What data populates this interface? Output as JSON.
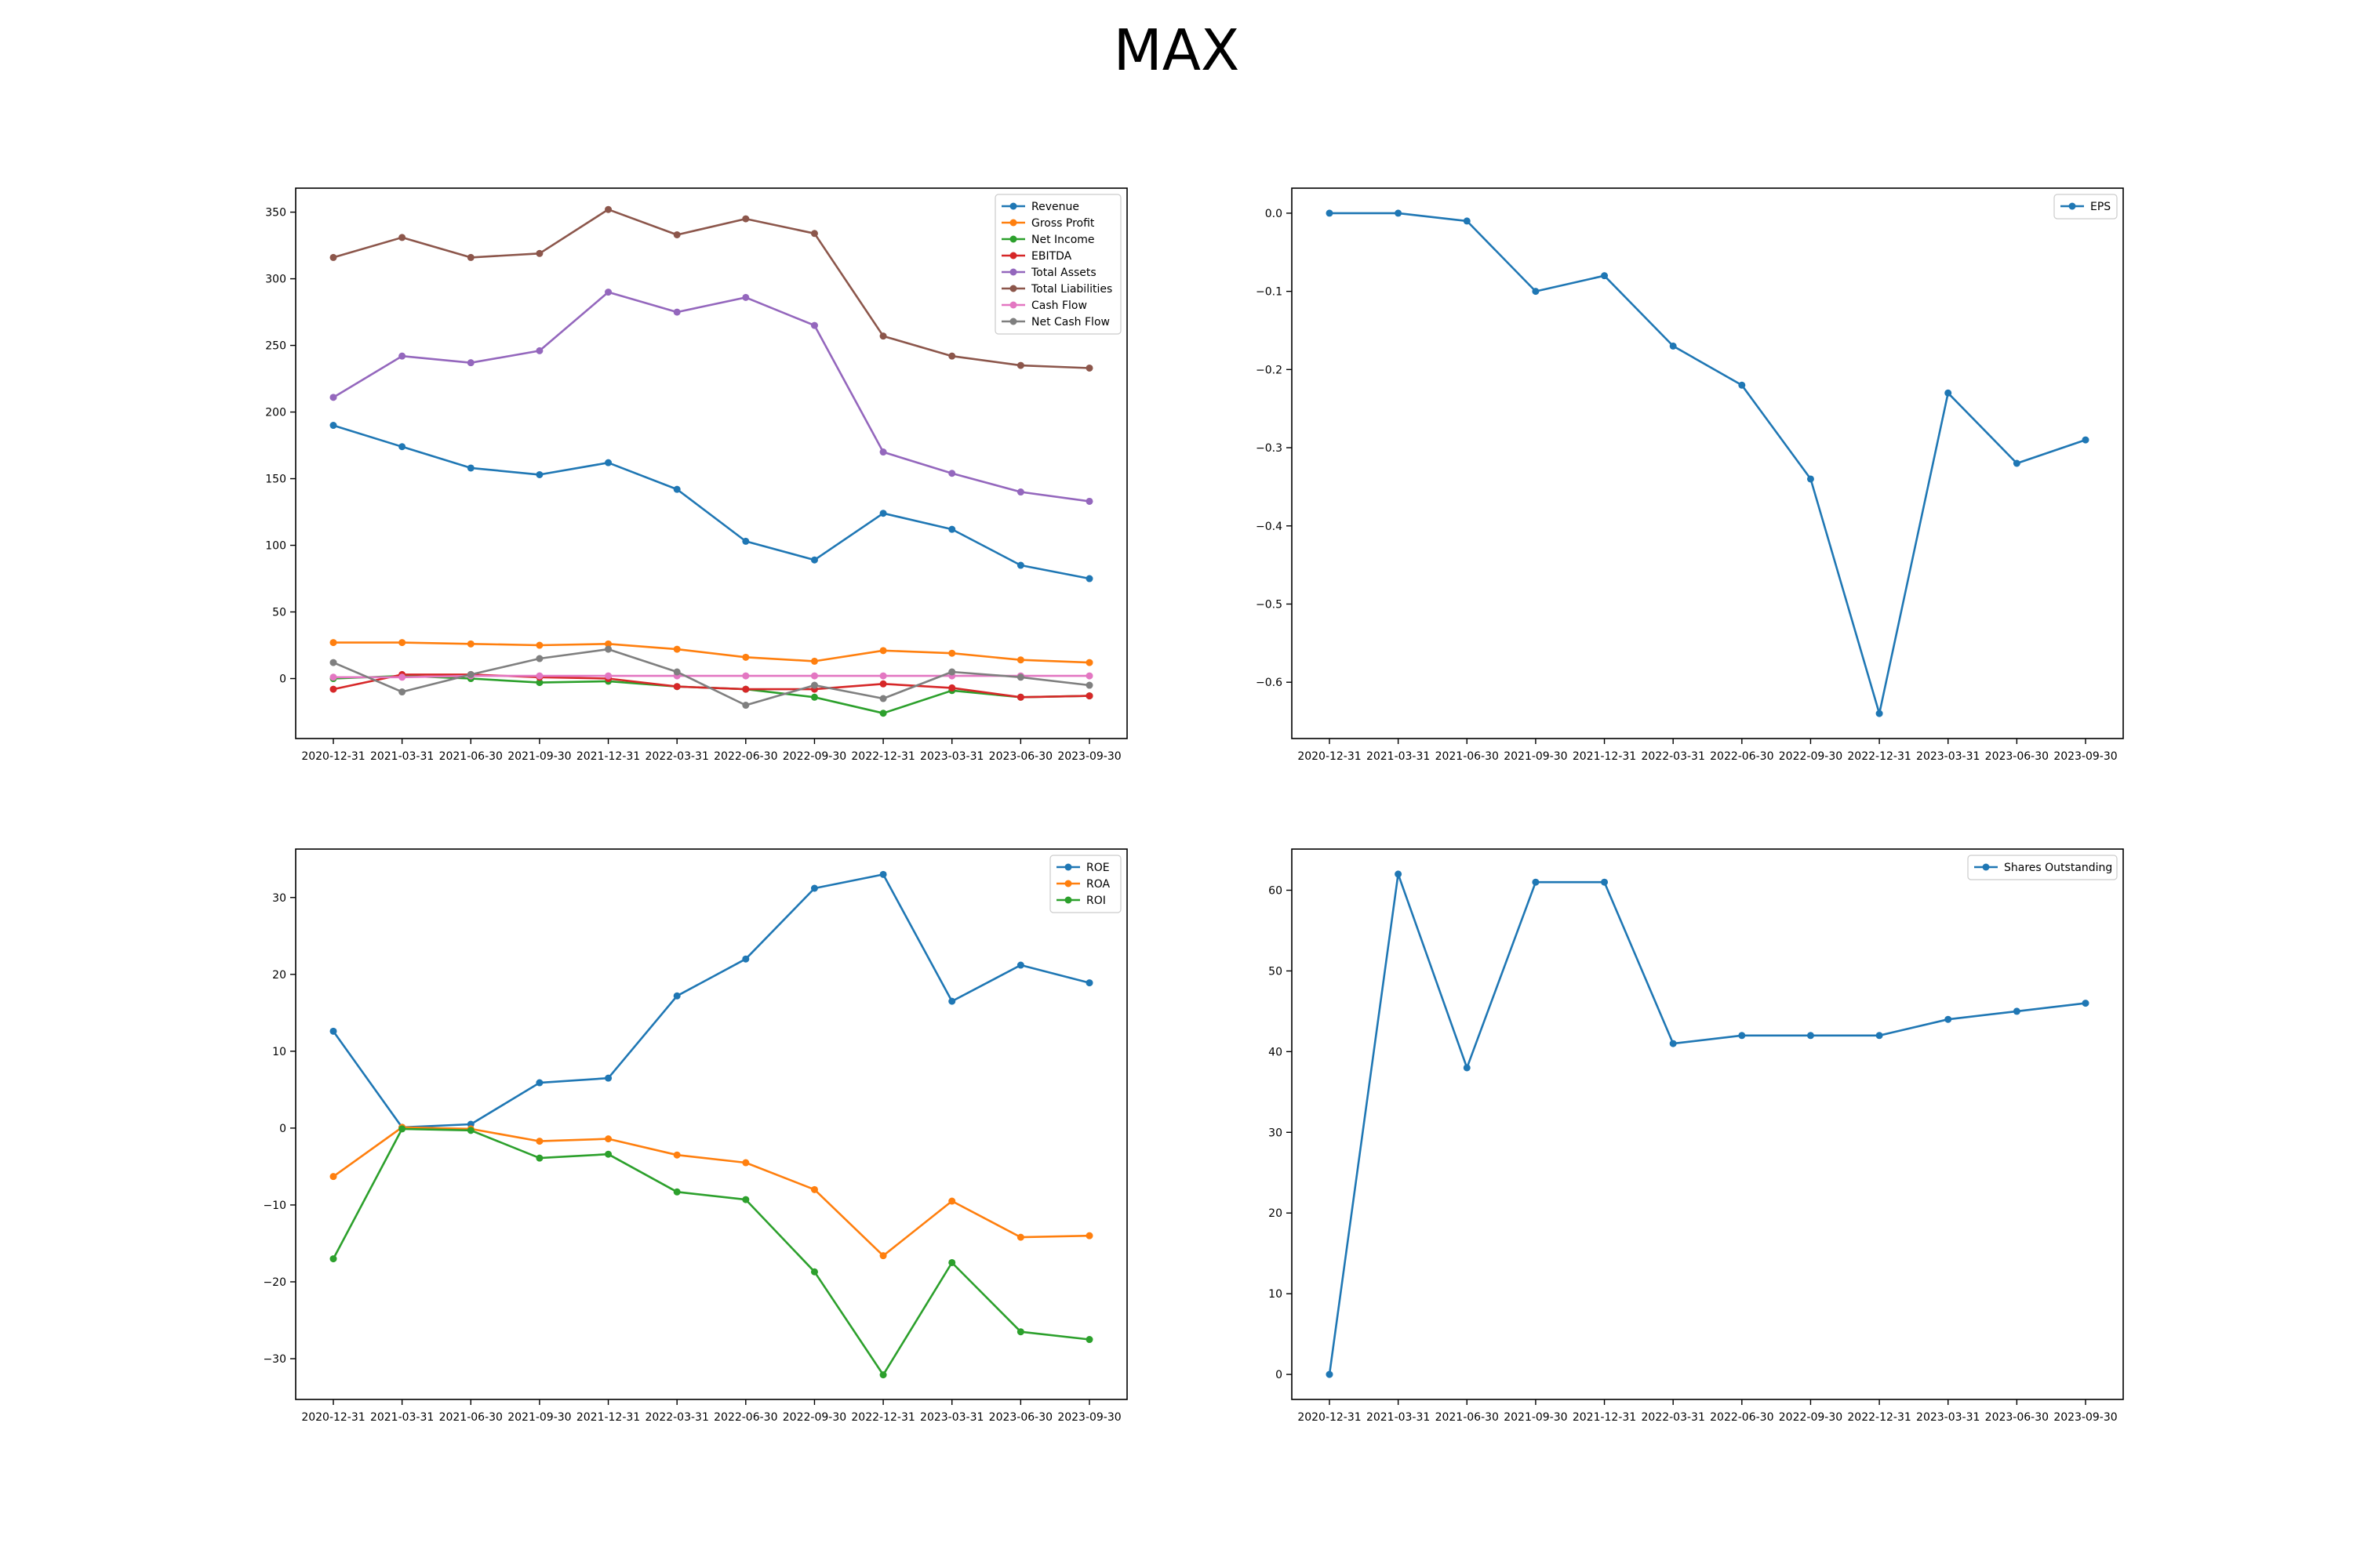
{
  "title": "MAX",
  "colors": {
    "blue": "#1f77b4",
    "orange": "#ff7f0e",
    "green": "#2ca02c",
    "red": "#d62728",
    "purple": "#9467bd",
    "brown": "#8c564b",
    "pink": "#e377c2",
    "gray": "#7f7f7f"
  },
  "chart_data": [
    {
      "id": "financials",
      "type": "line",
      "title": "",
      "xlabel": "",
      "ylabel": "",
      "categories": [
        "2020-12-31",
        "2021-03-31",
        "2021-06-30",
        "2021-09-30",
        "2021-12-31",
        "2022-03-31",
        "2022-06-30",
        "2022-09-30",
        "2022-12-31",
        "2023-03-31",
        "2023-06-30",
        "2023-09-30"
      ],
      "ylim": [
        -45,
        368
      ],
      "yticks": [
        0,
        50,
        100,
        150,
        200,
        250,
        300,
        350
      ],
      "legend": "top-right",
      "series": [
        {
          "name": "Revenue",
          "color": "#1f77b4",
          "values": [
            190,
            174,
            158,
            153,
            162,
            142,
            103,
            89,
            124,
            112,
            85,
            75
          ]
        },
        {
          "name": "Gross Profit",
          "color": "#ff7f0e",
          "values": [
            27,
            27,
            26,
            25,
            26,
            22,
            16,
            13,
            21,
            19,
            14,
            12
          ]
        },
        {
          "name": "Net Income",
          "color": "#2ca02c",
          "values": [
            0,
            2,
            0,
            -3,
            -2,
            -6,
            -8,
            -14,
            -26,
            -9,
            -14,
            -13
          ]
        },
        {
          "name": "EBITDA",
          "color": "#d62728",
          "values": [
            -8,
            3,
            3,
            1,
            0,
            -6,
            -8,
            -8,
            -4,
            -7,
            -14,
            -13
          ]
        },
        {
          "name": "Total Assets",
          "color": "#9467bd",
          "values": [
            211,
            242,
            237,
            246,
            290,
            275,
            286,
            265,
            170,
            154,
            140,
            133
          ]
        },
        {
          "name": "Total Liabilities",
          "color": "#8c564b",
          "values": [
            316,
            331,
            316,
            319,
            352,
            333,
            345,
            334,
            257,
            242,
            235,
            233
          ]
        },
        {
          "name": "Cash Flow",
          "color": "#e377c2",
          "values": [
            1,
            1,
            2,
            2,
            2,
            2,
            2,
            2,
            2,
            2,
            2,
            2
          ]
        },
        {
          "name": "Net Cash Flow",
          "color": "#7f7f7f",
          "values": [
            12,
            -10,
            3,
            15,
            22,
            5,
            -20,
            -5,
            -15,
            5,
            1,
            -5
          ]
        }
      ]
    },
    {
      "id": "eps",
      "type": "line",
      "title": "",
      "xlabel": "",
      "ylabel": "",
      "categories": [
        "2020-12-31",
        "2021-03-31",
        "2021-06-30",
        "2021-09-30",
        "2021-12-31",
        "2022-03-31",
        "2022-06-30",
        "2022-09-30",
        "2022-12-31",
        "2023-03-31",
        "2023-06-30",
        "2023-09-30"
      ],
      "ylim": [
        -0.672,
        0.032
      ],
      "yticks": [
        0.0,
        -0.1,
        -0.2,
        -0.3,
        -0.4,
        -0.5,
        -0.6
      ],
      "legend": "top-right",
      "series": [
        {
          "name": "EPS",
          "color": "#1f77b4",
          "values": [
            0.0,
            0.0,
            -0.01,
            -0.1,
            -0.08,
            -0.17,
            -0.22,
            -0.34,
            -0.64,
            -0.23,
            -0.32,
            -0.29
          ]
        }
      ]
    },
    {
      "id": "ratios",
      "type": "line",
      "title": "",
      "xlabel": "",
      "ylabel": "",
      "categories": [
        "2020-12-31",
        "2021-03-31",
        "2021-06-30",
        "2021-09-30",
        "2021-12-31",
        "2022-03-31",
        "2022-06-30",
        "2022-09-30",
        "2022-12-31",
        "2023-03-31",
        "2023-06-30",
        "2023-09-30"
      ],
      "ylim": [
        -35.3,
        36.3
      ],
      "yticks": [
        30,
        20,
        10,
        0,
        -10,
        -20,
        -30
      ],
      "legend": "top-right",
      "series": [
        {
          "name": "ROE",
          "color": "#1f77b4",
          "values": [
            12.6,
            0.1,
            0.5,
            5.9,
            6.5,
            17.2,
            22.0,
            31.2,
            33.0,
            16.5,
            21.2,
            18.9
          ]
        },
        {
          "name": "ROA",
          "color": "#ff7f0e",
          "values": [
            -6.3,
            0.1,
            -0.1,
            -1.7,
            -1.4,
            -3.5,
            -4.5,
            -8.0,
            -16.6,
            -9.5,
            -14.2,
            -14.0
          ]
        },
        {
          "name": "ROI",
          "color": "#2ca02c",
          "values": [
            -17.0,
            -0.1,
            -0.3,
            -3.9,
            -3.4,
            -8.3,
            -9.3,
            -18.7,
            -32.1,
            -17.5,
            -26.5,
            -27.5
          ]
        }
      ]
    },
    {
      "id": "shares",
      "type": "line",
      "title": "",
      "xlabel": "",
      "ylabel": "",
      "categories": [
        "2020-12-31",
        "2021-03-31",
        "2021-06-30",
        "2021-09-30",
        "2021-12-31",
        "2022-03-31",
        "2022-06-30",
        "2022-09-30",
        "2022-12-31",
        "2023-03-31",
        "2023-06-30",
        "2023-09-30"
      ],
      "ylim": [
        -3.1,
        65.1
      ],
      "yticks": [
        60,
        50,
        40,
        30,
        20,
        10,
        0
      ],
      "legend": "top-right",
      "series": [
        {
          "name": "Shares Outstanding",
          "color": "#1f77b4",
          "values": [
            0,
            62,
            38,
            61,
            61,
            41,
            42,
            42,
            42,
            44,
            45,
            46
          ]
        }
      ]
    }
  ]
}
